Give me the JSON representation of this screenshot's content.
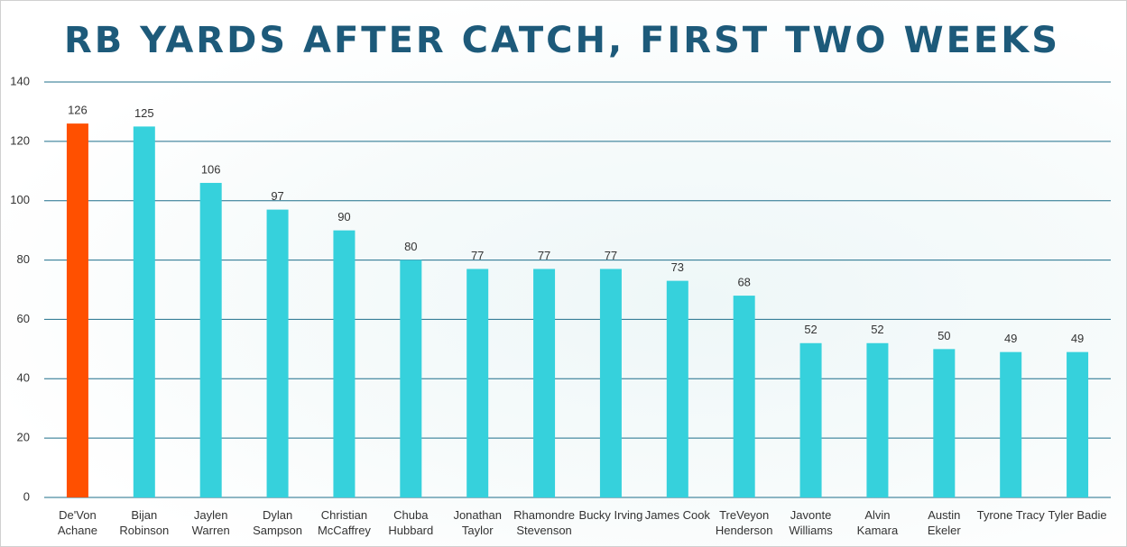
{
  "chart_data": {
    "type": "bar",
    "title": "RB YARDS AFTER CATCH, FIRST TWO WEEKS",
    "categories": [
      "De'Von\nAchane",
      "Bijan\nRobinson",
      "Jaylen\nWarren",
      "Dylan\nSampson",
      "Christian\nMcCaffrey",
      "Chuba\nHubbard",
      "Jonathan\nTaylor",
      "Rhamondre\nStevenson",
      "Bucky Irving",
      "James Cook",
      "TreVeyon\nHenderson",
      "Javonte\nWilliams",
      "Alvin\nKamara",
      "Austin\nEkeler",
      "Tyrone Tracy",
      "Tyler Badie"
    ],
    "values": [
      126,
      125,
      106,
      97,
      90,
      80,
      77,
      77,
      77,
      73,
      68,
      52,
      52,
      50,
      49,
      49
    ],
    "colors": [
      "#ff5000",
      "#36d1dc",
      "#36d1dc",
      "#36d1dc",
      "#36d1dc",
      "#36d1dc",
      "#36d1dc",
      "#36d1dc",
      "#36d1dc",
      "#36d1dc",
      "#36d1dc",
      "#36d1dc",
      "#36d1dc",
      "#36d1dc",
      "#36d1dc",
      "#36d1dc"
    ],
    "ylim": [
      0,
      140
    ],
    "yticks": [
      0,
      20,
      40,
      60,
      80,
      100,
      120,
      140
    ],
    "grid": true,
    "grid_color": "#1f6f8b"
  }
}
